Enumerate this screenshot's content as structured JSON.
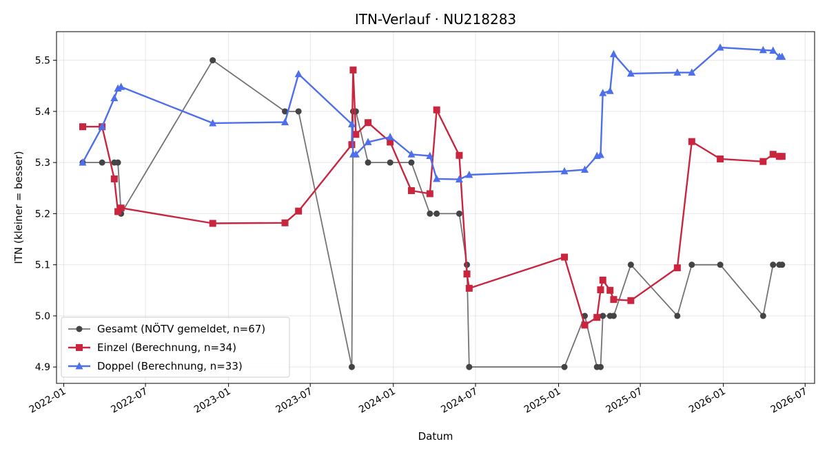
{
  "chart_data": {
    "type": "line",
    "title": "ITN-Verlauf · NU218283",
    "xlabel": "Datum",
    "ylabel": "ITN  (kleiner = besser)",
    "x_type": "date",
    "xlim": [
      "2021-12-16",
      "2026-07-22"
    ],
    "ylim": [
      4.868,
      5.556
    ],
    "x_ticks": [
      "2022-01",
      "2022-07",
      "2023-01",
      "2023-07",
      "2024-01",
      "2024-07",
      "2025-01",
      "2025-07",
      "2026-01",
      "2026-07"
    ],
    "y_ticks": [
      4.9,
      5.0,
      5.1,
      5.2,
      5.3,
      5.4,
      5.5
    ],
    "grid": true,
    "legend_position": "lower-left",
    "series": [
      {
        "name": "Gesamt (NÖTV gemeldet, n=67)",
        "color": "#444444",
        "marker": "circle",
        "x": [
          "2022-02-12",
          "2022-03-27",
          "2022-04-23",
          "2022-05-01",
          "2022-05-08",
          "2022-11-27",
          "2023-05-06",
          "2023-06-05",
          "2023-10-01",
          "2023-10-04",
          "2023-10-10",
          "2023-11-06",
          "2023-12-25",
          "2024-02-10",
          "2024-03-22",
          "2024-04-06",
          "2024-05-26",
          "2024-06-12",
          "2024-06-17",
          "2025-01-14",
          "2025-02-28",
          "2025-03-27",
          "2025-04-04",
          "2025-04-09",
          "2025-04-25",
          "2025-05-03",
          "2025-06-10",
          "2025-09-21",
          "2025-10-23",
          "2025-12-25",
          "2026-03-30",
          "2026-04-21",
          "2026-05-05",
          "2026-05-11"
        ],
        "y": [
          5.3,
          5.3,
          5.3,
          5.3,
          5.2,
          5.5,
          5.4,
          5.4,
          4.9,
          5.4,
          5.4,
          5.3,
          5.3,
          5.3,
          5.2,
          5.2,
          5.2,
          5.1,
          4.9,
          4.9,
          5.0,
          4.9,
          4.9,
          5.0,
          5.0,
          5.0,
          5.1,
          5.0,
          5.1,
          5.1,
          5.0,
          5.1,
          5.1,
          5.1
        ]
      },
      {
        "name": "Einzel (Berechnung, n=34)",
        "color": "#c9253f",
        "marker": "square",
        "x": [
          "2022-02-12",
          "2022-03-27",
          "2022-04-23",
          "2022-05-01",
          "2022-05-08",
          "2022-11-27",
          "2023-05-06",
          "2023-06-05",
          "2023-10-01",
          "2023-10-04",
          "2023-10-10",
          "2023-11-06",
          "2023-12-25",
          "2024-02-10",
          "2024-03-22",
          "2024-04-06",
          "2024-05-26",
          "2024-06-12",
          "2024-06-17",
          "2025-01-14",
          "2025-02-28",
          "2025-03-27",
          "2025-04-04",
          "2025-04-09",
          "2025-04-25",
          "2025-05-03",
          "2025-06-10",
          "2025-09-21",
          "2025-10-23",
          "2025-12-25",
          "2026-03-30",
          "2026-04-21",
          "2026-05-05",
          "2026-05-11"
        ],
        "y": [
          5.37,
          5.37,
          5.268,
          5.204,
          5.211,
          5.181,
          5.182,
          5.205,
          5.335,
          5.481,
          5.355,
          5.378,
          5.34,
          5.245,
          5.239,
          5.403,
          5.314,
          5.082,
          5.054,
          5.115,
          4.982,
          4.997,
          5.051,
          5.07,
          5.05,
          5.032,
          5.03,
          5.094,
          5.341,
          5.307,
          5.302,
          5.316,
          5.312,
          5.312
        ]
      },
      {
        "name": "Doppel (Berechnung, n=33)",
        "color": "#4d6fec",
        "marker": "triangle",
        "x": [
          "2022-02-12",
          "2022-03-27",
          "2022-04-23",
          "2022-05-01",
          "2022-05-08",
          "2022-11-27",
          "2023-05-06",
          "2023-06-05",
          "2023-10-01",
          "2023-10-04",
          "2023-10-10",
          "2023-11-06",
          "2023-12-25",
          "2024-02-10",
          "2024-03-22",
          "2024-04-06",
          "2024-05-26",
          "2024-06-17",
          "2025-01-14",
          "2025-02-28",
          "2025-03-27",
          "2025-04-04",
          "2025-04-09",
          "2025-04-25",
          "2025-05-03",
          "2025-06-10",
          "2025-09-21",
          "2025-10-23",
          "2025-12-25",
          "2026-03-30",
          "2026-04-21",
          "2026-05-05",
          "2026-05-11"
        ],
        "y": [
          5.3,
          5.37,
          5.426,
          5.445,
          5.448,
          5.377,
          5.379,
          5.473,
          5.375,
          5.316,
          5.316,
          5.34,
          5.35,
          5.316,
          5.313,
          5.268,
          5.267,
          5.276,
          5.283,
          5.286,
          5.313,
          5.315,
          5.436,
          5.44,
          5.512,
          5.474,
          5.476,
          5.476,
          5.525,
          5.52,
          5.519,
          5.507,
          5.507
        ]
      }
    ]
  }
}
